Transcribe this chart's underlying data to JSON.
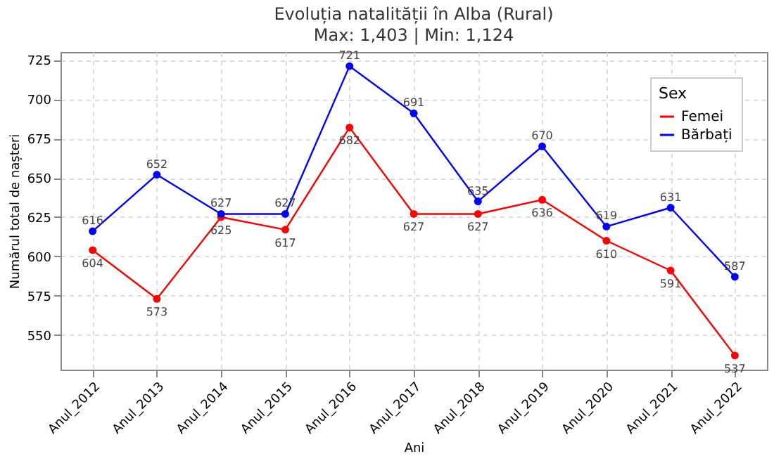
{
  "chart_data": {
    "type": "line",
    "title": "Evoluția natalității în Alba (Rural)",
    "subtitle": "Max: 1,403 | Min: 1,124",
    "xlabel": "Ani",
    "ylabel": "Numărul total de nașteri",
    "legend_title": "Sex",
    "categories": [
      "Anul_2012",
      "Anul_2013",
      "Anul_2014",
      "Anul_2015",
      "Anul_2016",
      "Anul_2017",
      "Anul_2018",
      "Anul_2019",
      "Anul_2020",
      "Anul_2021",
      "Anul_2022"
    ],
    "series": [
      {
        "name": "Femei",
        "color": "#ff0000",
        "values": [
          604,
          573,
          625,
          617,
          682,
          627,
          627,
          636,
          610,
          591,
          537
        ]
      },
      {
        "name": "Bărbați",
        "color": "#0000ff",
        "values": [
          616,
          652,
          627,
          627,
          721,
          691,
          635,
          670,
          619,
          631,
          587
        ]
      }
    ],
    "ylim": [
      528,
      730
    ],
    "yticks": [
      550,
      575,
      600,
      625,
      650,
      675,
      700,
      725
    ],
    "grid": true,
    "legend": "top right",
    "marker": "circle",
    "line_style": "solid",
    "data_labels": true
  }
}
